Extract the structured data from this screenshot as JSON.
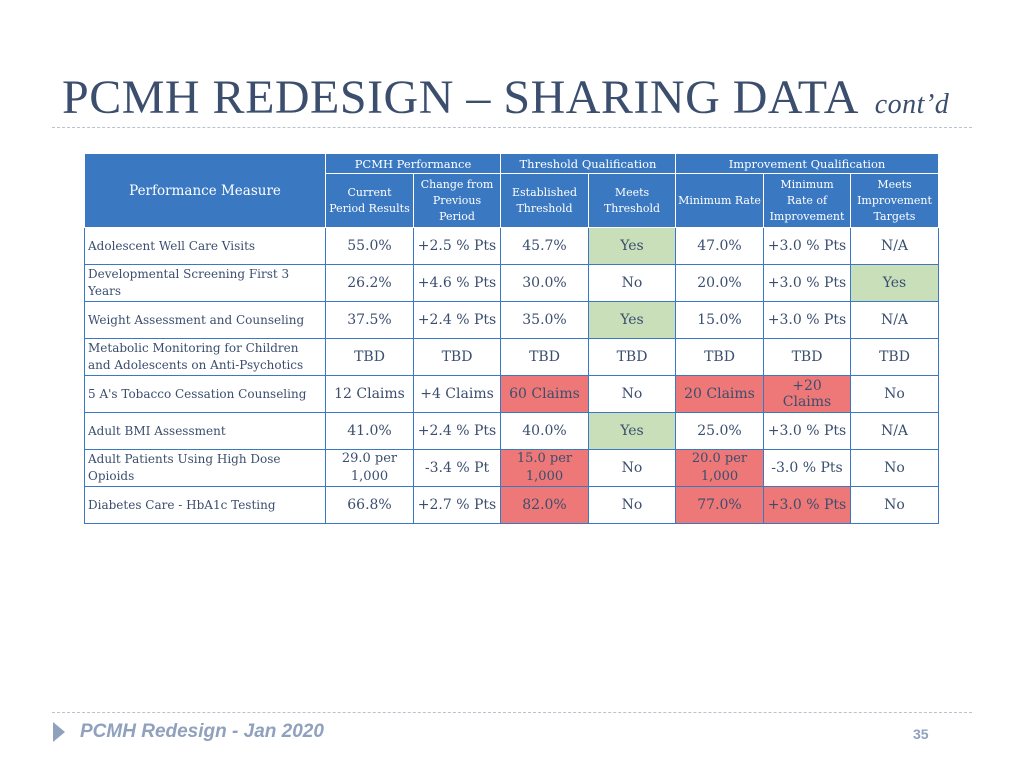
{
  "title": {
    "main": "PCMH REDESIGN – SHARING DATA",
    "suffix": "cont’d"
  },
  "table": {
    "group_headers": {
      "measure": "Performance Measure",
      "pcmh": "PCMH Performance",
      "threshold": "Threshold Qualification",
      "improvement": "Improvement Qualification"
    },
    "column_headers": [
      "Current Period Results",
      "Change from Previous Period",
      "Established Threshold",
      "Meets Threshold",
      "Minimum Rate",
      "Minimum Rate of Improvement",
      "Meets Improvement Targets"
    ],
    "rows": [
      {
        "measure": "Adolescent Well Care Visits",
        "cells": [
          "55.0%",
          "+2.5 % Pts",
          "45.7%",
          "Yes",
          "47.0%",
          "+3.0 % Pts",
          "N/A"
        ],
        "highlight": [
          "",
          "",
          "",
          "green",
          "",
          "",
          ""
        ]
      },
      {
        "measure": "Developmental Screening First 3 Years",
        "cells": [
          "26.2%",
          "+4.6 % Pts",
          "30.0%",
          "No",
          "20.0%",
          "+3.0 % Pts",
          "Yes"
        ],
        "highlight": [
          "",
          "",
          "",
          "",
          "",
          "",
          "green"
        ]
      },
      {
        "measure": "Weight Assessment and Counseling",
        "cells": [
          "37.5%",
          "+2.4 % Pts",
          "35.0%",
          "Yes",
          "15.0%",
          "+3.0 % Pts",
          "N/A"
        ],
        "highlight": [
          "",
          "",
          "",
          "green",
          "",
          "",
          ""
        ]
      },
      {
        "measure": "Metabolic Monitoring for Children and Adolescents on Anti-Psychotics",
        "cells": [
          "TBD",
          "TBD",
          "TBD",
          "TBD",
          "TBD",
          "TBD",
          "TBD"
        ],
        "highlight": [
          "",
          "",
          "",
          "",
          "",
          "",
          ""
        ]
      },
      {
        "measure": "5 A's Tobacco Cessation Counseling",
        "cells": [
          "12 Claims",
          "+4 Claims",
          "60 Claims",
          "No",
          "20 Claims",
          "+20 Claims",
          "No"
        ],
        "highlight": [
          "",
          "",
          "red",
          "",
          "red",
          "red",
          ""
        ]
      },
      {
        "measure": "Adult BMI Assessment",
        "cells": [
          "41.0%",
          "+2.4 % Pts",
          "40.0%",
          "Yes",
          "25.0%",
          "+3.0 % Pts",
          "N/A"
        ],
        "highlight": [
          "",
          "",
          "",
          "green",
          "",
          "",
          ""
        ]
      },
      {
        "measure": "Adult Patients Using High Dose Opioids",
        "cells": [
          "29.0 per 1,000",
          "-3.4 % Pt",
          "15.0 per 1,000",
          "No",
          "20.0 per 1,000",
          "-3.0 % Pts",
          "No"
        ],
        "highlight": [
          "",
          "",
          "red",
          "",
          "red",
          "",
          ""
        ]
      },
      {
        "measure": "Diabetes Care - HbA1c Testing",
        "cells": [
          "66.8%",
          "+2.7 % Pts",
          "82.0%",
          "No",
          "77.0%",
          "+3.0 % Pts",
          "No"
        ],
        "highlight": [
          "",
          "",
          "red",
          "",
          "red",
          "red",
          ""
        ]
      }
    ],
    "colors": {
      "header": "#3a78c2",
      "green": "#c8dfb9",
      "red": "#ee7777"
    }
  },
  "footer": {
    "text": "PCMH Redesign - Jan 2020",
    "page_number": "35",
    "arrow_icon": "triangle-right-icon"
  }
}
